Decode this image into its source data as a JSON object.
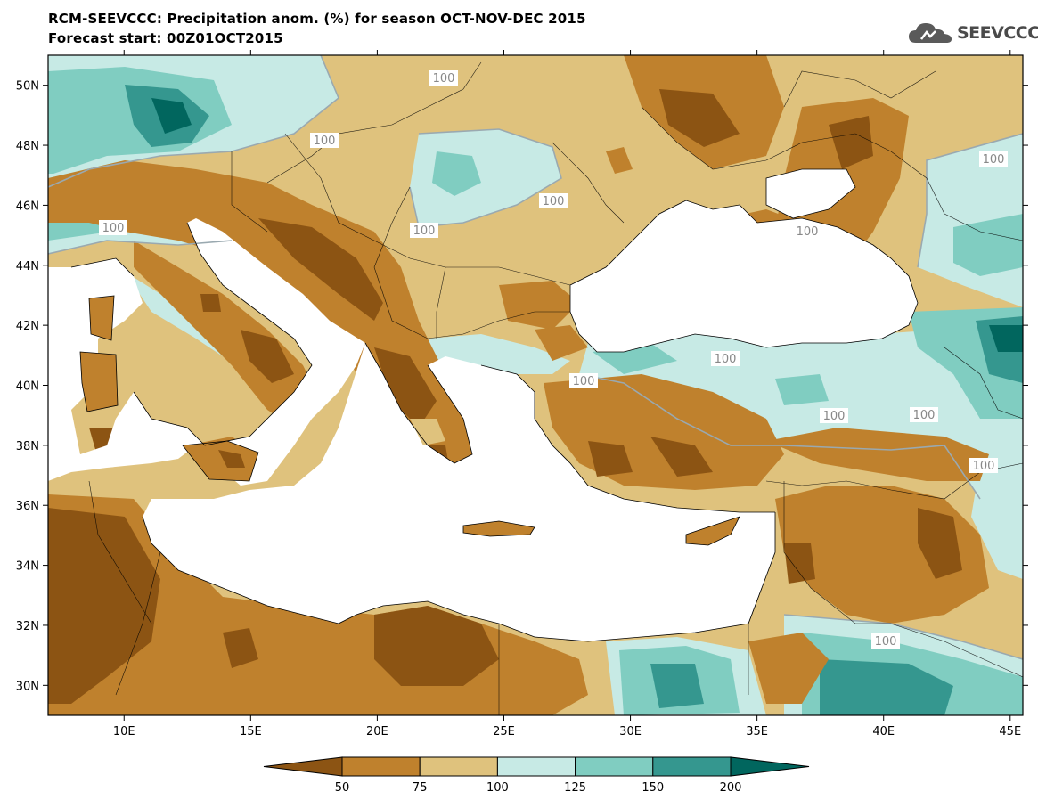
{
  "title": {
    "line1": "RCM-SEEVCCC: Precipitation anom. (%) for season OCT-NOV-DEC 2015",
    "line2": "Forecast start: 00Z01OCT2015"
  },
  "logo": {
    "text": "SEEVCCC",
    "icon": "cloud-icon"
  },
  "map": {
    "lon_range": [
      7,
      45.5
    ],
    "lat_range": [
      29,
      51
    ],
    "lon_ticks": [
      "10E",
      "15E",
      "20E",
      "25E",
      "30E",
      "35E",
      "40E",
      "45E"
    ],
    "lat_ticks": [
      "50N",
      "48N",
      "46N",
      "44N",
      "42N",
      "40N",
      "38N",
      "36N",
      "34N",
      "32N",
      "30N"
    ],
    "sea_color": "#ffffff",
    "contour_labels": [
      "100",
      "100",
      "100",
      "100",
      "100",
      "100",
      "100",
      "100",
      "100",
      "100",
      "100",
      "100",
      "100"
    ]
  },
  "colorbar": {
    "labels": [
      "50",
      "75",
      "100",
      "125",
      "150",
      "200"
    ],
    "colors": [
      "#8c5413",
      "#bf812d",
      "#dfc27d",
      "#c7eae5",
      "#80cdc1",
      "#35978f",
      "#01665e"
    ]
  }
}
